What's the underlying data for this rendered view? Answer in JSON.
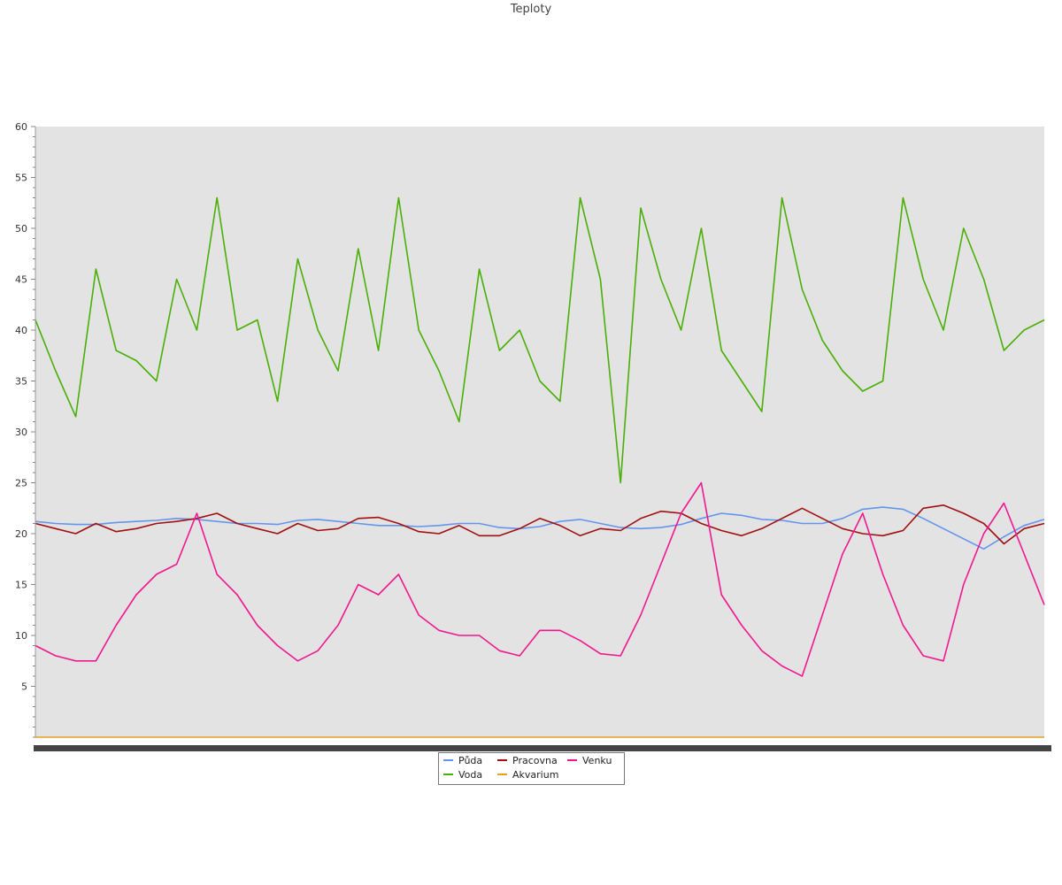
{
  "chart_data": {
    "type": "line",
    "title": "Teploty",
    "xlabel": "",
    "ylabel": "",
    "ylim": [
      0,
      60
    ],
    "yticks": [
      5,
      10,
      15,
      20,
      25,
      30,
      35,
      40,
      45,
      50,
      55,
      60
    ],
    "x": [
      0,
      2,
      4,
      6,
      8,
      10,
      12,
      14,
      16,
      18,
      20,
      22,
      24,
      26,
      28,
      30,
      32,
      34,
      36,
      38,
      40,
      42,
      44,
      46,
      48,
      50,
      52,
      54,
      56,
      58,
      60,
      62,
      64,
      66,
      68,
      70,
      72,
      74,
      76,
      78,
      80,
      82,
      84,
      86,
      88,
      90,
      92,
      94,
      96,
      98,
      100
    ],
    "grid": false,
    "legend_position": "bottom-center",
    "series": [
      {
        "name": "Půda",
        "color": "#6495ed",
        "values": [
          21.2,
          21.0,
          20.9,
          20.9,
          21.1,
          21.2,
          21.3,
          21.5,
          21.4,
          21.2,
          21.0,
          21.0,
          20.9,
          21.3,
          21.4,
          21.2,
          21.0,
          20.8,
          20.8,
          20.7,
          20.8,
          21.0,
          21.0,
          20.6,
          20.5,
          20.7,
          21.2,
          21.4,
          21.0,
          20.6,
          20.5,
          20.6,
          20.9,
          21.5,
          22.0,
          21.8,
          21.4,
          21.3,
          21.0,
          21.0,
          21.5,
          22.4,
          22.6,
          22.4,
          21.5,
          20.5,
          19.5,
          18.5,
          19.7,
          20.8,
          21.4
        ]
      },
      {
        "name": "Voda",
        "color": "#4aaf06",
        "values": [
          41,
          36,
          31.5,
          46,
          38,
          37,
          35,
          45,
          40,
          53,
          40,
          41,
          33,
          47,
          40,
          36,
          48,
          38,
          53,
          40,
          36,
          31,
          46,
          38,
          40,
          35,
          33,
          53,
          45,
          25,
          52,
          45,
          40,
          50,
          38,
          35,
          32,
          53,
          44,
          39,
          36,
          34,
          35,
          53,
          45,
          40,
          50,
          45,
          38,
          40,
          41
        ]
      },
      {
        "name": "Pracovna",
        "color": "#a01010",
        "values": [
          21.0,
          20.5,
          20.0,
          21.0,
          20.2,
          20.5,
          21.0,
          21.2,
          21.5,
          22.0,
          21.0,
          20.5,
          20.0,
          21.0,
          20.3,
          20.5,
          21.5,
          21.6,
          21.0,
          20.2,
          20.0,
          20.8,
          19.8,
          19.8,
          20.5,
          21.5,
          20.8,
          19.8,
          20.5,
          20.3,
          21.5,
          22.2,
          22.0,
          21.0,
          20.3,
          19.8,
          20.5,
          21.5,
          22.5,
          21.5,
          20.5,
          20.0,
          19.8,
          20.3,
          22.5,
          22.8,
          22.0,
          21.0,
          19.0,
          20.5,
          21.0
        ]
      },
      {
        "name": "Akvarium",
        "color": "#e6a020",
        "values": [
          0,
          0,
          0,
          0,
          0,
          0,
          0,
          0,
          0,
          0,
          0,
          0,
          0,
          0,
          0,
          0,
          0,
          0,
          0,
          0,
          0,
          0,
          0,
          0,
          0,
          0,
          0,
          0,
          0,
          0,
          0,
          0,
          0,
          0,
          0,
          0,
          0,
          0,
          0,
          0,
          0,
          0,
          0,
          0,
          0,
          0,
          0,
          0,
          0,
          0,
          0
        ]
      },
      {
        "name": "Venku",
        "color": "#f01890",
        "values": [
          9,
          8,
          7.5,
          7.5,
          11,
          14,
          16,
          17,
          22,
          16,
          14,
          11,
          9,
          7.5,
          8.5,
          11,
          15,
          14,
          16,
          12,
          10.5,
          10,
          10,
          8.5,
          8,
          10.5,
          10.5,
          9.5,
          8.2,
          8,
          12,
          17,
          22,
          25,
          14,
          11,
          8.5,
          7,
          6,
          12,
          18,
          22,
          16,
          11,
          8,
          7.5,
          15,
          20,
          23,
          18,
          13
        ]
      }
    ]
  }
}
